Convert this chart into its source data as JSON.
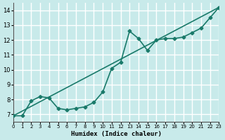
{
  "xlabel": "Humidex (Indice chaleur)",
  "ylabel": "",
  "bg_color": "#c8eaea",
  "grid_color": "#ffffff",
  "line_color": "#1a7a6a",
  "xlim": [
    0,
    23
  ],
  "ylim": [
    6.5,
    14.5
  ],
  "x_ticks": [
    0,
    1,
    2,
    3,
    4,
    5,
    6,
    7,
    8,
    9,
    10,
    11,
    12,
    13,
    14,
    15,
    16,
    17,
    18,
    19,
    20,
    21,
    22,
    23
  ],
  "y_ticks": [
    7,
    8,
    9,
    10,
    11,
    12,
    13,
    14
  ],
  "straight_line_x": [
    0,
    23
  ],
  "straight_line_y": [
    6.9,
    14.2
  ],
  "curve_x": [
    0,
    1,
    2,
    3,
    4,
    5,
    6,
    7,
    8,
    9,
    10,
    11,
    12,
    13,
    14,
    15,
    16,
    17,
    18,
    19,
    20,
    21,
    22,
    23
  ],
  "curve_y": [
    6.9,
    6.9,
    7.9,
    8.2,
    8.1,
    7.4,
    7.3,
    7.4,
    7.5,
    7.8,
    8.5,
    10.1,
    10.5,
    12.6,
    12.1,
    11.3,
    12.0,
    12.1,
    12.1,
    12.2,
    12.5,
    12.8,
    13.5,
    14.2
  ]
}
